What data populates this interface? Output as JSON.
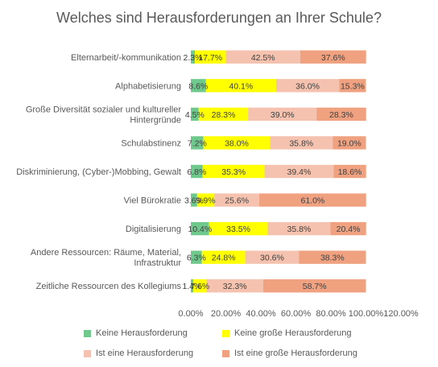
{
  "chart_data": {
    "type": "bar",
    "orientation": "horizontal",
    "stacked": "100%",
    "title": "Welches sind Herausforderungen an Ihrer Schule?",
    "categories": [
      [
        "Elternarbeit/-kommunikation"
      ],
      [
        "Alphabetisierung"
      ],
      [
        "Große Diversität sozialer und kultureller",
        "Hintergründe"
      ],
      [
        "Schulabstinenz"
      ],
      [
        "Diskriminierung, (Cyber-)Mobbing, Gewalt"
      ],
      [
        "Viel Bürokratie"
      ],
      [
        "Digitalisierung"
      ],
      [
        "Andere Ressourcen: Räume, Material,",
        "Infrastruktur"
      ],
      [
        "Zeitliche Ressourcen des Kollegiums"
      ]
    ],
    "series": [
      {
        "name": "Keine Herausforderung",
        "color": "#70c98c",
        "values": [
          2.3,
          8.6,
          4.5,
          7.2,
          6.8,
          3.6,
          10.4,
          6.3,
          1.4
        ]
      },
      {
        "name": "Keine große Herausforderung",
        "color": "#ffff00",
        "values": [
          17.7,
          40.1,
          28.3,
          38.0,
          35.3,
          9.9,
          33.5,
          24.8,
          7.6
        ]
      },
      {
        "name": "Ist eine Herausforderung",
        "color": "#f4c2ae",
        "values": [
          42.5,
          36.0,
          39.0,
          35.8,
          39.4,
          25.6,
          35.8,
          30.6,
          32.3
        ]
      },
      {
        "name": "Ist eine große Herausforderung",
        "color": "#f0a17f",
        "values": [
          37.6,
          15.3,
          28.3,
          19.0,
          18.6,
          61.0,
          20.4,
          38.3,
          58.7
        ]
      }
    ],
    "data_labels": [
      [
        "2.3%",
        "17.7%",
        "42.5%",
        "37.6%"
      ],
      [
        "8.6%",
        "40.1%",
        "36.0%",
        "15.3%"
      ],
      [
        "4.5%",
        "28.3%",
        "39.0%",
        "28.3%"
      ],
      [
        "7.2%",
        "38.0%",
        "35.8%",
        "19.0%"
      ],
      [
        "6.8%",
        "35.3%",
        "39.4%",
        "18.6%"
      ],
      [
        "3.6%",
        "9.9%",
        "25.6%",
        "61.0%"
      ],
      [
        "10.4%",
        "33.5%",
        "35.8%",
        "20.4%"
      ],
      [
        "6.3%",
        "24.8%",
        "30.6%",
        "38.3%"
      ],
      [
        "1.4%",
        "7.6%",
        "32.3%",
        "58.7%"
      ]
    ],
    "x_ticks": [
      "0.00%",
      "20.00%",
      "40.00%",
      "60.00%",
      "80.00%",
      "100.00%",
      "120.00%"
    ],
    "xlim": [
      0,
      120
    ],
    "xlabel": "",
    "ylabel": "",
    "grid": false,
    "legend_position": "bottom"
  }
}
